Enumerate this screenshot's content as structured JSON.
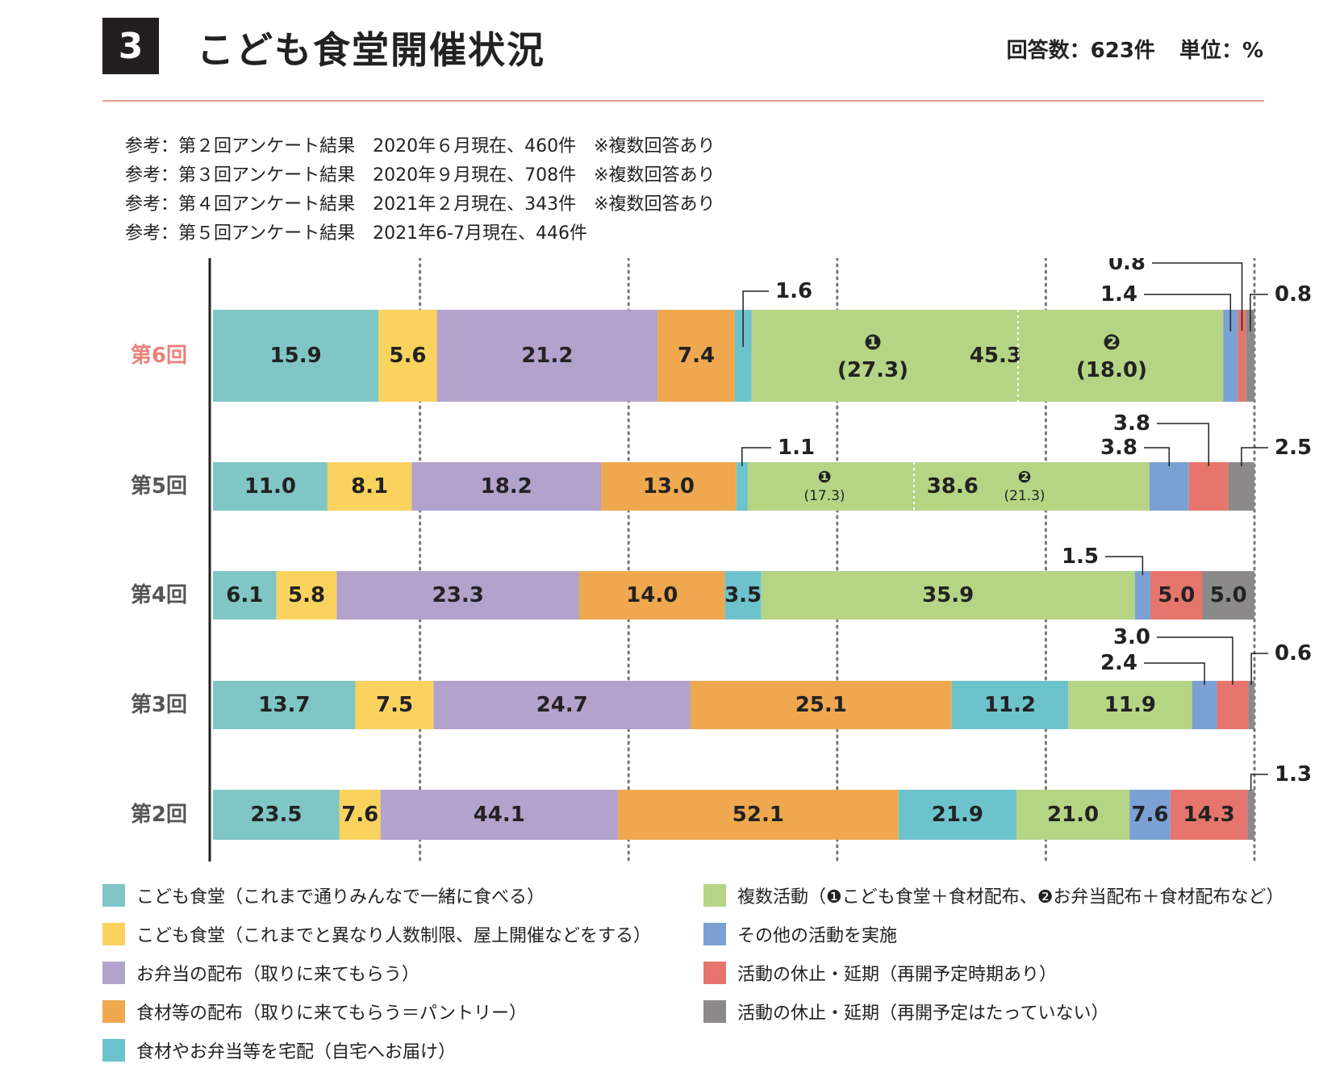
{
  "header": {
    "number": "3",
    "title": "こども食堂開催状況",
    "responses": "回答数：623件",
    "unit": "単位：%"
  },
  "notes": [
    "参考：第２回アンケート結果　2020年６月現在、460件　※複数回答あり",
    "参考：第３回アンケート結果　2020年９月現在、708件　※複数回答あり",
    "参考：第４回アンケート結果　2021年２月現在、343件　※複数回答あり",
    "参考：第５回アンケート結果　2021年6-7月現在、446件"
  ],
  "chart_data": {
    "type": "bar",
    "orientation": "horizontal-stacked",
    "grid": "dotted vertical",
    "categories": [
      "第6回",
      "第5回",
      "第4回",
      "第3回",
      "第2回"
    ],
    "highlight_category": "第6回",
    "highlight_color": "#e8827a",
    "series": [
      {
        "name": "こども食堂（これまで通りみんなで一緒に食べる）",
        "color": "#7fc6c5",
        "values": [
          15.9,
          11.0,
          6.1,
          13.7,
          23.5
        ]
      },
      {
        "name": "こども食堂（これまでと異なり人数制限、屋上開催などをする）",
        "color": "#fad35f",
        "values": [
          5.6,
          8.1,
          5.8,
          7.5,
          7.6
        ]
      },
      {
        "name": "お弁当の配布（取りに来てもらう）",
        "color": "#b3a2cc",
        "values": [
          21.2,
          18.2,
          23.3,
          24.7,
          44.1
        ]
      },
      {
        "name": "食材等の配布（取りに来てもらう＝パントリー）",
        "color": "#efa84f",
        "values": [
          7.4,
          13.0,
          14.0,
          25.1,
          52.1
        ]
      },
      {
        "name": "食材やお弁当等を宅配（自宅へお届け）",
        "color": "#6dc3cc",
        "values": [
          1.6,
          1.1,
          3.5,
          11.2,
          21.9
        ]
      },
      {
        "name": "複数活動（❶こども食堂＋食材配布、❷お弁当配布＋食材配布など）",
        "color": "#b5d585",
        "values": [
          45.3,
          38.6,
          35.9,
          11.9,
          21.0
        ]
      },
      {
        "name": "その他の活動を実施",
        "color": "#7ba1d4",
        "values": [
          1.4,
          3.8,
          1.5,
          2.4,
          7.6
        ]
      },
      {
        "name": "活動の休止・延期（再開予定時期あり）",
        "color": "#e6756d",
        "values": [
          0.8,
          3.8,
          5.0,
          3.0,
          14.3
        ]
      },
      {
        "name": "活動の休止・延期（再開予定はたっていない）",
        "color": "#8b8989",
        "values": [
          0.8,
          2.5,
          5.0,
          0.6,
          1.3
        ]
      }
    ],
    "sub_breakdown": {
      "series": "複数活動",
      "rows": [
        {
          "category": "第6回",
          "parts": [
            {
              "marker": "❶",
              "value": "(27.3)"
            },
            {
              "marker": "❷",
              "value": "(18.0)"
            }
          ]
        },
        {
          "category": "第5回",
          "parts": [
            {
              "marker": "❶",
              "value": "(17.3)"
            },
            {
              "marker": "❷",
              "value": "(21.3)"
            }
          ]
        }
      ]
    },
    "xlabel": "",
    "ylabel": ""
  },
  "legend": [
    {
      "label": "こども食堂（これまで通りみんなで一緒に食べる）",
      "color": "#7fc6c5"
    },
    {
      "label": "こども食堂（これまでと異なり人数制限、屋上開催などをする）",
      "color": "#fad35f"
    },
    {
      "label": "お弁当の配布（取りに来てもらう）",
      "color": "#b3a2cc"
    },
    {
      "label": "食材等の配布（取りに来てもらう＝パントリー）",
      "color": "#efa84f"
    },
    {
      "label": "食材やお弁当等を宅配（自宅へお届け）",
      "color": "#6dc3cc"
    },
    {
      "label": "複数活動（❶こども食堂＋食材配布、❷お弁当配布＋食材配布など）",
      "color": "#b5d585"
    },
    {
      "label": "その他の活動を実施",
      "color": "#7ba1d4"
    },
    {
      "label": "活動の休止・延期（再開予定時期あり）",
      "color": "#e6756d"
    },
    {
      "label": "活動の休止・延期（再開予定はたっていない）",
      "color": "#8b8989"
    }
  ]
}
